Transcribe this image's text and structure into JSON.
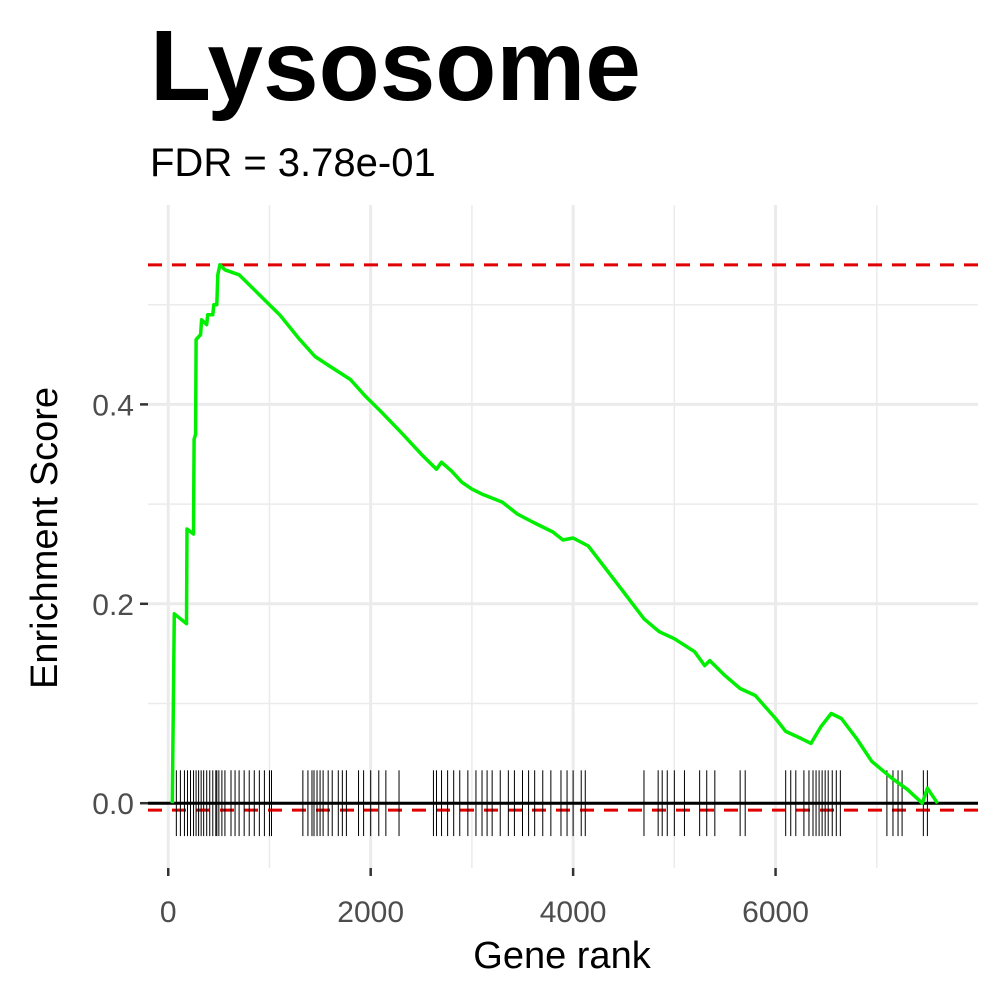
{
  "chart_data": {
    "type": "line",
    "title": "Lysosome",
    "subtitle": "FDR = 3.78e-01",
    "xlabel": "Gene rank",
    "ylabel": "Enrichment Score",
    "xlim": [
      -200,
      8000
    ],
    "ylim": [
      -0.065,
      0.6
    ],
    "x_ticks": [
      0,
      2000,
      4000,
      6000
    ],
    "y_ticks": [
      0.0,
      0.2,
      0.4
    ],
    "grid": true,
    "reference_lines": {
      "max_es": 0.54,
      "min_es": -0.007,
      "zero": 0.0
    },
    "colors": {
      "line": "#00ee00",
      "reference": "#e00000",
      "rug": "#000000",
      "grid": "#ebebeb"
    },
    "series": [
      {
        "values": [
          [
            40,
            0.0
          ],
          [
            60,
            0.19
          ],
          [
            180,
            0.18
          ],
          [
            185,
            0.275
          ],
          [
            250,
            0.27
          ],
          [
            255,
            0.365
          ],
          [
            270,
            0.37
          ],
          [
            275,
            0.465
          ],
          [
            320,
            0.47
          ],
          [
            330,
            0.485
          ],
          [
            380,
            0.48
          ],
          [
            390,
            0.49
          ],
          [
            440,
            0.49
          ],
          [
            450,
            0.5
          ],
          [
            480,
            0.5
          ],
          [
            490,
            0.53
          ],
          [
            510,
            0.54
          ],
          [
            560,
            0.535
          ],
          [
            700,
            0.53
          ],
          [
            900,
            0.51
          ],
          [
            1100,
            0.49
          ],
          [
            1300,
            0.465
          ],
          [
            1450,
            0.448
          ],
          [
            1600,
            0.438
          ],
          [
            1800,
            0.425
          ],
          [
            1950,
            0.408
          ],
          [
            2100,
            0.393
          ],
          [
            2300,
            0.372
          ],
          [
            2500,
            0.35
          ],
          [
            2650,
            0.335
          ],
          [
            2700,
            0.342
          ],
          [
            2800,
            0.333
          ],
          [
            2900,
            0.322
          ],
          [
            3000,
            0.315
          ],
          [
            3100,
            0.31
          ],
          [
            3300,
            0.302
          ],
          [
            3450,
            0.29
          ],
          [
            3600,
            0.282
          ],
          [
            3800,
            0.272
          ],
          [
            3900,
            0.264
          ],
          [
            4000,
            0.266
          ],
          [
            4150,
            0.258
          ],
          [
            4400,
            0.225
          ],
          [
            4700,
            0.185
          ],
          [
            4850,
            0.172
          ],
          [
            5000,
            0.165
          ],
          [
            5200,
            0.152
          ],
          [
            5300,
            0.138
          ],
          [
            5350,
            0.143
          ],
          [
            5500,
            0.128
          ],
          [
            5650,
            0.115
          ],
          [
            5800,
            0.108
          ],
          [
            6000,
            0.085
          ],
          [
            6100,
            0.072
          ],
          [
            6250,
            0.065
          ],
          [
            6350,
            0.06
          ],
          [
            6450,
            0.077
          ],
          [
            6550,
            0.09
          ],
          [
            6650,
            0.085
          ],
          [
            6800,
            0.065
          ],
          [
            6950,
            0.042
          ],
          [
            7150,
            0.025
          ],
          [
            7300,
            0.014
          ],
          [
            7450,
            0.0
          ],
          [
            7500,
            0.015
          ],
          [
            7600,
            0.0
          ]
        ]
      }
    ],
    "rug": [
      80,
      120,
      160,
      190,
      220,
      250,
      275,
      300,
      325,
      350,
      380,
      410,
      440,
      470,
      480,
      500,
      530,
      560,
      620,
      660,
      700,
      750,
      800,
      850,
      900,
      950,
      1000,
      1020,
      1330,
      1380,
      1420,
      1440,
      1470,
      1500,
      1530,
      1580,
      1620,
      1680,
      1720,
      1760,
      1880,
      1930,
      2000,
      2080,
      2150,
      2280,
      2620,
      2650,
      2700,
      2760,
      2820,
      2880,
      2960,
      3040,
      3100,
      3150,
      3200,
      3280,
      3360,
      3420,
      3500,
      3560,
      3620,
      3700,
      3780,
      3880,
      3940,
      4000,
      4080,
      4120,
      4700,
      4840,
      4880,
      4930,
      5000,
      5100,
      5250,
      5320,
      5400,
      5650,
      5700,
      6100,
      6150,
      6200,
      6280,
      6330,
      6370,
      6400,
      6430,
      6460,
      6490,
      6520,
      6560,
      6600,
      6640,
      7100,
      7160,
      7210,
      7250,
      7460,
      7500
    ]
  }
}
